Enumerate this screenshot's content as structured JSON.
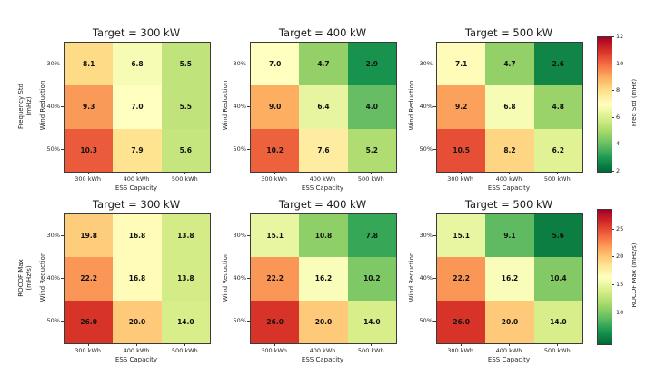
{
  "figure": {
    "background": "#ffffff",
    "text_color": "#1a1a1a"
  },
  "colormap": {
    "name": "RdYlGn_r",
    "stops": [
      "#006837",
      "#1a9850",
      "#66bd63",
      "#a6d96a",
      "#d9ef8b",
      "#ffffbf",
      "#fee08b",
      "#fdae61",
      "#f46d43",
      "#d73027",
      "#a50026"
    ]
  },
  "chart_data": {
    "type": "heatmap",
    "x_categories": [
      "300 kWh",
      "400 kWh",
      "500 kWh"
    ],
    "y_categories": [
      "30%",
      "40%",
      "50%"
    ],
    "xlabel": "ESS Capacity",
    "ylabel": "Wind Reduction",
    "annotation_format": "one_decimal",
    "grid": false,
    "rows": [
      {
        "measure_label_lines": [
          "Frequency Std",
          "(mHz)"
        ],
        "colorbar": {
          "label": "Freq Std (mHz)",
          "ticks": [
            2,
            4,
            6,
            8,
            10,
            12
          ],
          "vmin": 2,
          "vmax": 12,
          "position": "right"
        },
        "panels": [
          {
            "title": "Target = 300 kW",
            "values": [
              [
                8.1,
                6.8,
                5.5
              ],
              [
                9.3,
                7.0,
                5.5
              ],
              [
                10.3,
                7.9,
                5.6
              ]
            ]
          },
          {
            "title": "Target = 400 kW",
            "values": [
              [
                7.0,
                4.7,
                2.9
              ],
              [
                9.0,
                6.4,
                4.0
              ],
              [
                10.2,
                7.6,
                5.2
              ]
            ]
          },
          {
            "title": "Target = 500 kW",
            "values": [
              [
                7.1,
                4.7,
                2.6
              ],
              [
                9.2,
                6.8,
                4.8
              ],
              [
                10.5,
                8.2,
                6.2
              ]
            ]
          }
        ]
      },
      {
        "measure_label_lines": [
          "ROCOF Max",
          "(mHz/s)"
        ],
        "colorbar": {
          "label": "ROCOF Max (mHz/s)",
          "ticks": [
            10,
            15,
            20,
            25
          ],
          "vmin": 4.5,
          "vmax": 28.5,
          "position": "right"
        },
        "panels": [
          {
            "title": "Target = 300 kW",
            "values": [
              [
                19.8,
                16.8,
                13.8
              ],
              [
                22.2,
                16.8,
                13.8
              ],
              [
                26.0,
                20.0,
                14.0
              ]
            ]
          },
          {
            "title": "Target = 400 kW",
            "values": [
              [
                15.1,
                10.8,
                7.8
              ],
              [
                22.2,
                16.2,
                10.2
              ],
              [
                26.0,
                20.0,
                14.0
              ]
            ]
          },
          {
            "title": "Target = 500 kW",
            "values": [
              [
                15.1,
                9.1,
                5.6
              ],
              [
                22.2,
                16.2,
                10.4
              ],
              [
                26.0,
                20.0,
                14.0
              ]
            ]
          }
        ]
      }
    ]
  }
}
